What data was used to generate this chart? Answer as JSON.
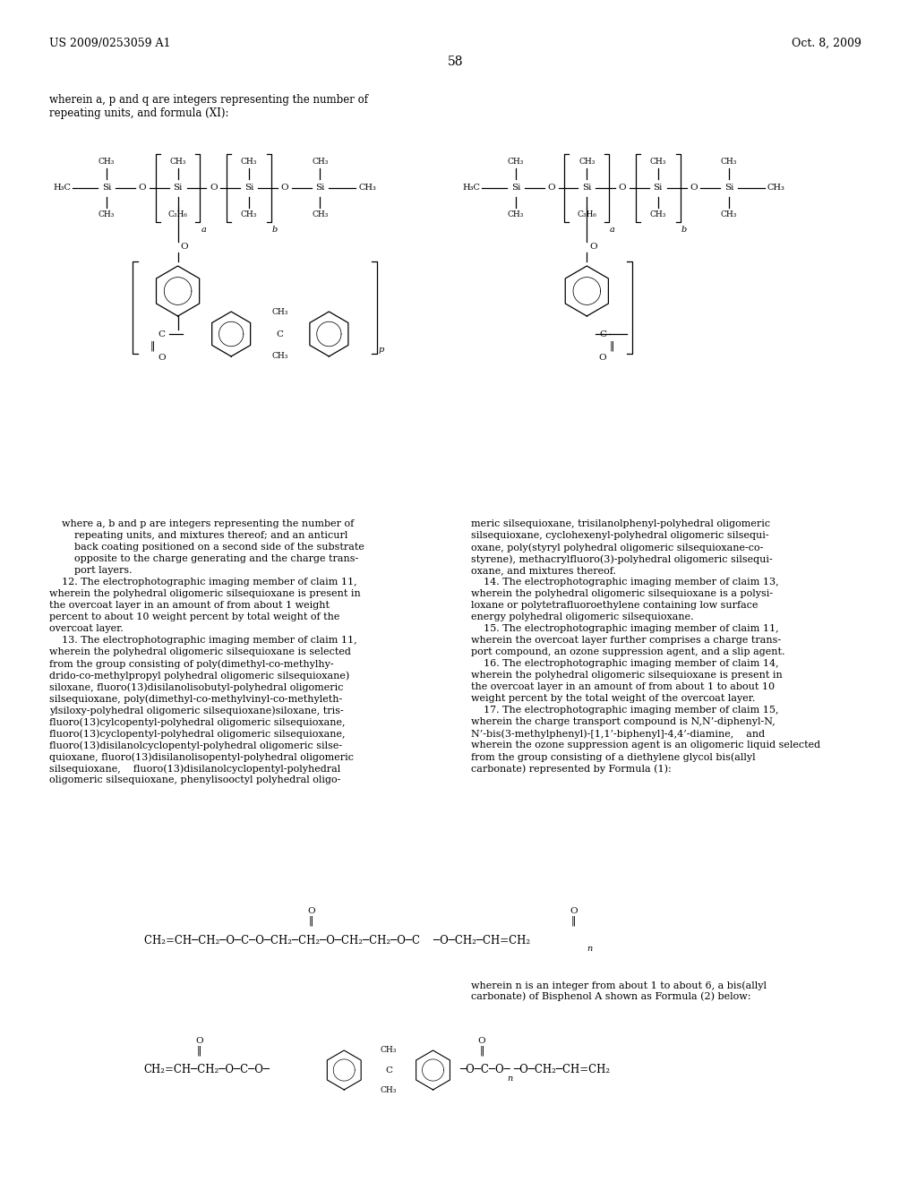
{
  "header_left": "US 2009/0253059 A1",
  "header_right": "Oct. 8, 2009",
  "page_number": "58",
  "intro_text": "wherein a, p and q are integers representing the number of\nrepeating units, and formula (XI):",
  "body_text_left": "    where a, b and p are integers representing the number of\n        repeating units, and mixtures thereof; and an anticurl\n        back coating positioned on a second side of the substrate\n        opposite to the charge generating and the charge trans-\n        port layers.\n    12. The electrophotographic imaging member of claim 11,\nwherein the polyhedral oligomeric silsequioxane is present in\nthe overcoat layer in an amount of from about 1 weight\npercent to about 10 weight percent by total weight of the\novercoat layer.\n    13. The electrophotographic imaging member of claim 11,\nwherein the polyhedral oligomeric silsequioxane is selected\nfrom the group consisting of poly(dimethyl-co-methylhy-\ndrido-co-methylpropyl polyhedral oligomeric silsequioxane)\nsiloxane, fluoro(13)disilanolisobutyl-polyhedral oligomeric\nsilsequioxane, poly(dimethyl-co-methylvinyl-co-methyleth-\nylsiloxy-polyhedral oligomeric silsequioxane)siloxane, tris-\nfluoro(13)cylcopentyl-polyhedral oligomeric silsequioxane,\nfluoro(13)cyclopentyl-polyhedral oligomeric silsequioxane,\nfluoro(13)disilanolcyclopentyl-polyhedral oligomeric silse-\nquioxane, fluoro(13)disilanolisopentyl-polyhedral oligomeric\nsilsequioxane,    fluoro(13)disilanolcyclopentyl-polyhedral\noligomeric silsequioxane, phenylisooctyl polyhedral oligo-",
  "body_text_right": "meric silsequioxane, trisilanolphenyl-polyhedral oligomeric\nsilsequioxane, cyclohexenyl-polyhedral oligomeric silsequi-\noxane, poly(styryl polyhedral oligomeric silsequioxane-co-\nstyrene), methacrylfluoro(3)-polyhedral oligomeric silsequi-\noxane, and mixtures thereof.\n    14. The electrophotographic imaging member of claim 13,\nwherein the polyhedral oligomeric silsequioxane is a polysi-\nloxane or polytetrafluoroethylene containing low surface\nenergy polyhedral oligomeric silsequioxane.\n    15. The electrophotographic imaging member of claim 11,\nwherein the overcoat layer further comprises a charge trans-\nport compound, an ozone suppression agent, and a slip agent.\n    16. The electrophotographic imaging member of claim 14,\nwherein the polyhedral oligomeric silsequioxane is present in\nthe overcoat layer in an amount of from about 1 to about 10\nweight percent by the total weight of the overcoat layer.\n    17. The electrophotographic imaging member of claim 15,\nwherein the charge transport compound is N,N’-diphenyl-N,\nN’-bis(3-methylphenyl)-[1,1’-biphenyl]-4,4’-diamine,    and\nwherein the ozone suppression agent is an oligomeric liquid selected\nfrom the group consisting of a diethylene glycol bis(allyl\ncarbonate) represented by Formula (1):",
  "formula1_label": "Formula (1) - diethylene glycol bis(allyl carbonate):",
  "formula1_text": "CH₂=CH—CH₂—O—C—O—CH₂—CH₂—O—CH₂—CH₂—O—C    —O—CH₂—CH=CH₂",
  "formula2_text": "CH₂=CH—CH₂—O—C—O—    —C—    —O—C    —O—CH₂—CH=CH₂",
  "wherein_n_text": "wherein n is an integer from about 1 to about 6, a bis(allyl\ncarbonate) of Bisphenol A shown as Formula (2) below:",
  "bg_color": "#ffffff",
  "text_color": "#000000",
  "font_size_header": 9,
  "font_size_body": 8.5,
  "font_size_page": 10
}
